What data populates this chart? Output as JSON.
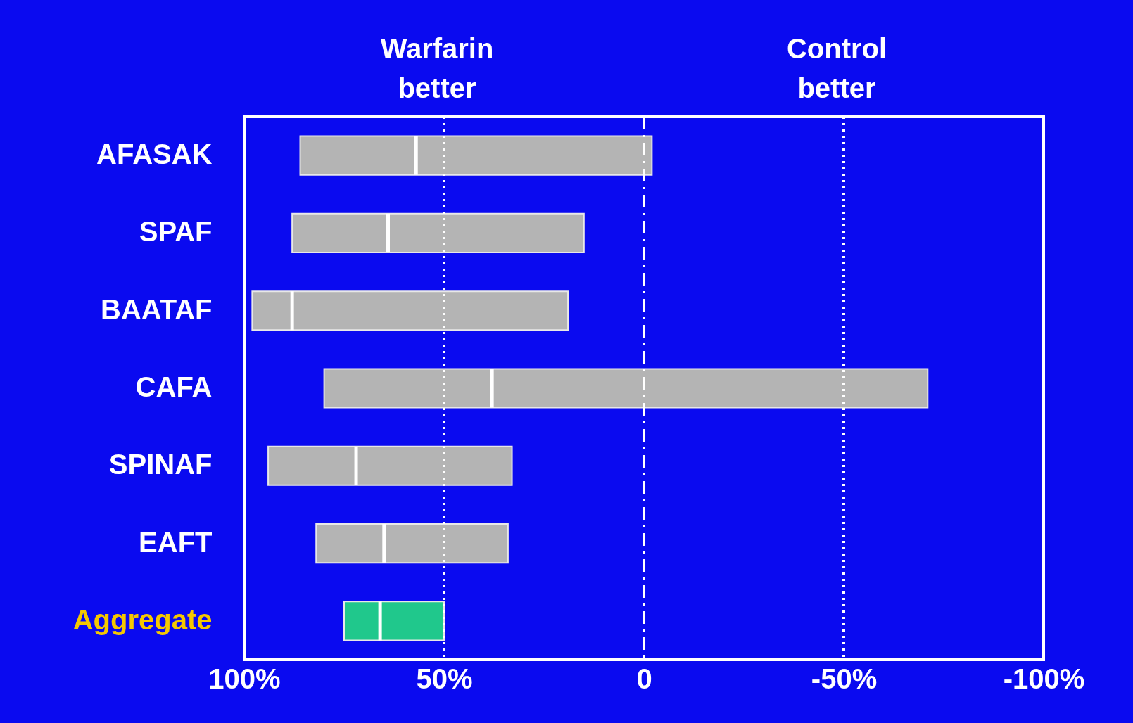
{
  "chart_data": {
    "type": "box",
    "orientation": "horizontal",
    "categories": [
      "AFASAK",
      "SPAF",
      "BAATAF",
      "CAFA",
      "SPINAF",
      "EAFT",
      "Aggregate"
    ],
    "boxes": [
      {
        "low": -2,
        "q1": -2,
        "median": 57,
        "q3": 86,
        "high": 86
      },
      {
        "low": 15,
        "q1": 15,
        "median": 64,
        "q3": 88,
        "high": 88
      },
      {
        "low": 19,
        "q1": 19,
        "median": 88,
        "q3": 98,
        "high": 98
      },
      {
        "low": -71,
        "q1": -71,
        "median": 38,
        "q3": 80,
        "high": 80
      },
      {
        "low": 33,
        "q1": 33,
        "median": 72,
        "q3": 94,
        "high": 94
      },
      {
        "low": 34,
        "q1": 34,
        "median": 65,
        "q3": 82,
        "high": 82
      },
      {
        "low": 50,
        "q1": 50,
        "median": 66,
        "q3": 75,
        "high": 75
      }
    ],
    "colors": [
      "#b4b4b4",
      "#b4b4b4",
      "#b4b4b4",
      "#b4b4b4",
      "#b4b4b4",
      "#b4b4b4",
      "#20c88c"
    ],
    "xlim": [
      100,
      -100
    ],
    "xticks": [
      {
        "value": 100,
        "label": "100%"
      },
      {
        "value": 50,
        "label": "50%"
      },
      0,
      {
        "value": -50,
        "label": "-50%"
      },
      {
        "value": -100,
        "label": "-100%"
      }
    ],
    "ref_lines": [
      {
        "axis": "x",
        "value": 50,
        "color": "#ffffff",
        "line_style": "dotted"
      },
      {
        "axis": "x",
        "value": 0,
        "color": "#ffffff",
        "line_style": "dashed"
      },
      {
        "axis": "x",
        "value": -50,
        "color": "#ffffff",
        "line_style": "dotted"
      }
    ],
    "annotations": [
      "Warfarin\nbetter",
      "Control\nbetter"
    ],
    "legend": false,
    "grid": false
  }
}
